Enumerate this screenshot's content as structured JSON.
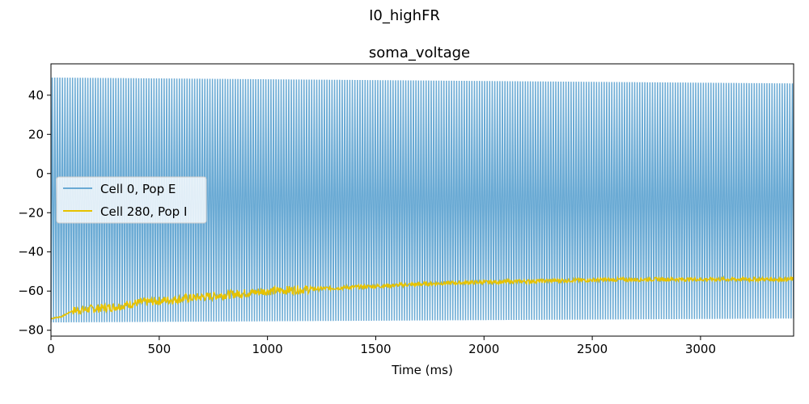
{
  "figure": {
    "suptitle": "I0_highFR"
  },
  "chart_data": {
    "type": "line",
    "title": "soma_voltage",
    "xlabel": "Time (ms)",
    "ylabel": "",
    "xlim": [
      0,
      3430
    ],
    "ylim": [
      -83,
      56
    ],
    "xticks": [
      0,
      500,
      1000,
      1500,
      2000,
      2500,
      3000
    ],
    "yticks": [
      40,
      20,
      0,
      -20,
      -40,
      -60,
      -80
    ],
    "xtick_labels": [
      "0",
      "500",
      "1000",
      "1500",
      "2000",
      "2500",
      "3000"
    ],
    "ytick_labels": [
      "40",
      "20",
      "0",
      "−20",
      "−40",
      "−60",
      "−80"
    ],
    "grid": false,
    "legend_position": "center-left",
    "series": [
      {
        "name": "Cell 0, Pop E",
        "color": "#6aaad4",
        "kind": "spike_train",
        "spike_count": 292,
        "peak_start": 49,
        "peak_end": 46,
        "trough_start": -76,
        "trough_end": -74,
        "x_start": 0,
        "x_end": 3430
      },
      {
        "name": "Cell 280, Pop I",
        "color": "#e6c200",
        "kind": "noisy_trace",
        "x": [
          0,
          50,
          100,
          200,
          300,
          400,
          500,
          600,
          700,
          800,
          900,
          1000,
          1200,
          1400,
          1600,
          1800,
          2000,
          2200,
          2400,
          2600,
          2800,
          3000,
          3200,
          3430
        ],
        "y": [
          -74,
          -73,
          -70,
          -69,
          -68,
          -66,
          -65,
          -64,
          -63,
          -62,
          -61,
          -60,
          -59,
          -58,
          -57,
          -56,
          -55.5,
          -55,
          -54.5,
          -54.2,
          -54,
          -54,
          -54,
          -54
        ]
      }
    ]
  }
}
